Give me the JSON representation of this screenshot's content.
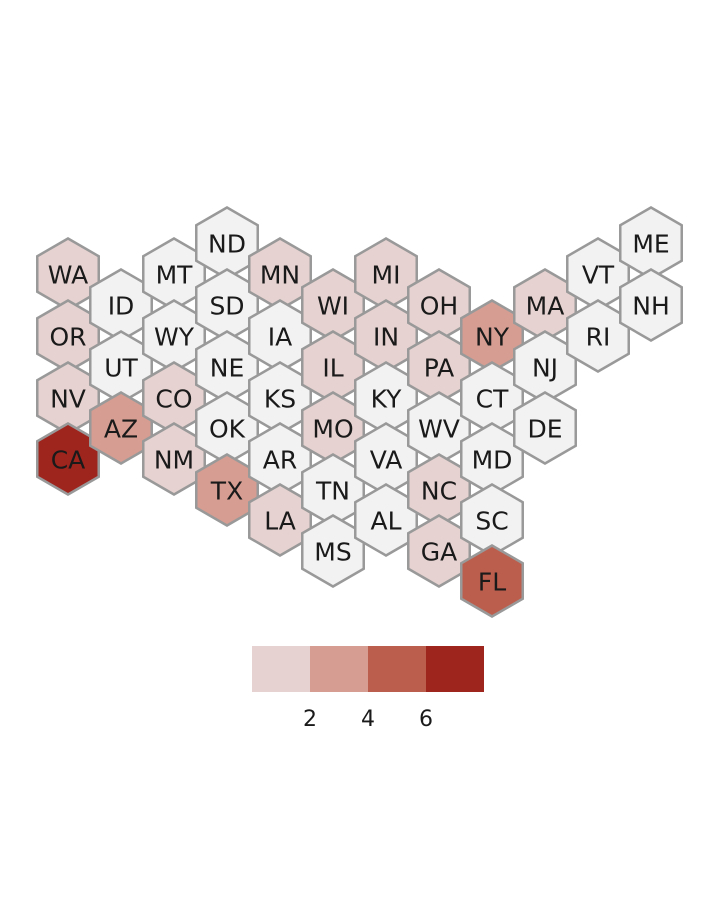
{
  "legend": {
    "colors": [
      "#e6d2d0",
      "#d69d92",
      "#bc5e4d",
      "#9e241e"
    ],
    "ticks": [
      "2",
      "4",
      "6"
    ]
  },
  "bin_colors": {
    "0": "#f2f2f2",
    "1": "#e6d2d0",
    "2": "#d69d92",
    "3": "#bc5e4d",
    "4": "#9e241e"
  },
  "states": [
    {
      "abbr": "WA",
      "bin": 1
    },
    {
      "abbr": "OR",
      "bin": 1
    },
    {
      "abbr": "NV",
      "bin": 1
    },
    {
      "abbr": "CA",
      "bin": 4
    },
    {
      "abbr": "ID",
      "bin": 0
    },
    {
      "abbr": "UT",
      "bin": 0
    },
    {
      "abbr": "AZ",
      "bin": 2
    },
    {
      "abbr": "MT",
      "bin": 0
    },
    {
      "abbr": "WY",
      "bin": 0
    },
    {
      "abbr": "CO",
      "bin": 1
    },
    {
      "abbr": "NM",
      "bin": 1
    },
    {
      "abbr": "ND",
      "bin": 0
    },
    {
      "abbr": "SD",
      "bin": 0
    },
    {
      "abbr": "NE",
      "bin": 0
    },
    {
      "abbr": "OK",
      "bin": 0
    },
    {
      "abbr": "TX",
      "bin": 2
    },
    {
      "abbr": "MN",
      "bin": 1
    },
    {
      "abbr": "IA",
      "bin": 0
    },
    {
      "abbr": "KS",
      "bin": 0
    },
    {
      "abbr": "AR",
      "bin": 0
    },
    {
      "abbr": "LA",
      "bin": 1
    },
    {
      "abbr": "WI",
      "bin": 1
    },
    {
      "abbr": "IL",
      "bin": 1
    },
    {
      "abbr": "MO",
      "bin": 1
    },
    {
      "abbr": "TN",
      "bin": 0
    },
    {
      "abbr": "MS",
      "bin": 0
    },
    {
      "abbr": "MI",
      "bin": 1
    },
    {
      "abbr": "IN",
      "bin": 1
    },
    {
      "abbr": "KY",
      "bin": 0
    },
    {
      "abbr": "VA",
      "bin": 0
    },
    {
      "abbr": "AL",
      "bin": 0
    },
    {
      "abbr": "OH",
      "bin": 1
    },
    {
      "abbr": "PA",
      "bin": 1
    },
    {
      "abbr": "WV",
      "bin": 0
    },
    {
      "abbr": "NC",
      "bin": 1
    },
    {
      "abbr": "GA",
      "bin": 1
    },
    {
      "abbr": "NY",
      "bin": 2
    },
    {
      "abbr": "CT",
      "bin": 0
    },
    {
      "abbr": "MD",
      "bin": 0
    },
    {
      "abbr": "SC",
      "bin": 0
    },
    {
      "abbr": "FL",
      "bin": 3
    },
    {
      "abbr": "MA",
      "bin": 1
    },
    {
      "abbr": "NJ",
      "bin": 0
    },
    {
      "abbr": "DE",
      "bin": 0
    },
    {
      "abbr": "VT",
      "bin": 0
    },
    {
      "abbr": "RI",
      "bin": 0
    },
    {
      "abbr": "ME",
      "bin": 0
    },
    {
      "abbr": "NH",
      "bin": 0
    }
  ]
}
